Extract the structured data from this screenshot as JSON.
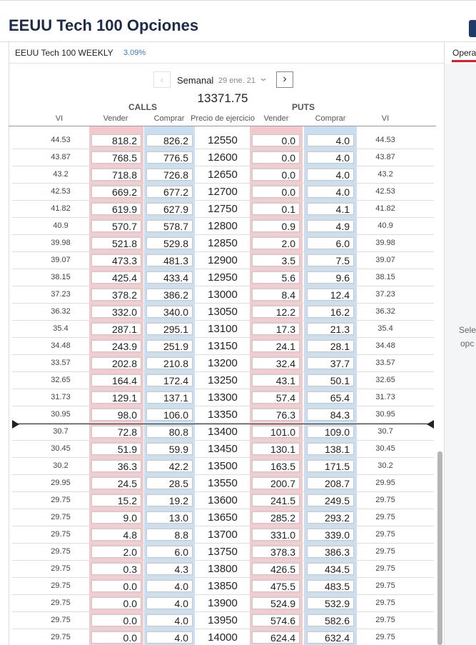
{
  "header": {
    "title": "EEUU Tech 100 Opciones"
  },
  "tabs": {
    "instrument": "EEUU Tech 100 WEEKLY",
    "change": "3.09%",
    "right": "Opera"
  },
  "nav": {
    "period": "Semanal",
    "date": "29 ene. 21"
  },
  "price": "13371.75",
  "columns": {
    "calls": "CALLS",
    "puts": "PUTS"
  },
  "headers": [
    "VI",
    "Vender",
    "Comprar",
    "Precio de ejercicio",
    "Vender",
    "Comprar",
    "VI"
  ],
  "side_text": [
    "Sele",
    "opc"
  ],
  "table": {
    "rows": [
      [
        "44.53",
        "818.2",
        "826.2",
        "12550",
        "0.0",
        "4.0",
        "44.53"
      ],
      [
        "43.87",
        "768.5",
        "776.5",
        "12600",
        "0.0",
        "4.0",
        "43.87"
      ],
      [
        "43.2",
        "718.8",
        "726.8",
        "12650",
        "0.0",
        "4.0",
        "43.2"
      ],
      [
        "42.53",
        "669.2",
        "677.2",
        "12700",
        "0.0",
        "4.0",
        "42.53"
      ],
      [
        "41.82",
        "619.9",
        "627.9",
        "12750",
        "0.1",
        "4.1",
        "41.82"
      ],
      [
        "40.9",
        "570.7",
        "578.7",
        "12800",
        "0.9",
        "4.9",
        "40.9"
      ],
      [
        "39.98",
        "521.8",
        "529.8",
        "12850",
        "2.0",
        "6.0",
        "39.98"
      ],
      [
        "39.07",
        "473.3",
        "481.3",
        "12900",
        "3.5",
        "7.5",
        "39.07"
      ],
      [
        "38.15",
        "425.4",
        "433.4",
        "12950",
        "5.6",
        "9.6",
        "38.15"
      ],
      [
        "37.23",
        "378.2",
        "386.2",
        "13000",
        "8.4",
        "12.4",
        "37.23"
      ],
      [
        "36.32",
        "332.0",
        "340.0",
        "13050",
        "12.2",
        "16.2",
        "36.32"
      ],
      [
        "35.4",
        "287.1",
        "295.1",
        "13100",
        "17.3",
        "21.3",
        "35.4"
      ],
      [
        "34.48",
        "243.9",
        "251.9",
        "13150",
        "24.1",
        "28.1",
        "34.48"
      ],
      [
        "33.57",
        "202.8",
        "210.8",
        "13200",
        "32.4",
        "37.7",
        "33.57"
      ],
      [
        "32.65",
        "164.4",
        "172.4",
        "13250",
        "43.1",
        "50.1",
        "32.65"
      ],
      [
        "31.73",
        "129.1",
        "137.1",
        "13300",
        "57.4",
        "65.4",
        "31.73"
      ],
      [
        "30.95",
        "98.0",
        "106.0",
        "13350",
        "76.3",
        "84.3",
        "30.95"
      ],
      [
        "30.7",
        "72.8",
        "80.8",
        "13400",
        "101.0",
        "109.0",
        "30.7"
      ],
      [
        "30.45",
        "51.9",
        "59.9",
        "13450",
        "130.1",
        "138.1",
        "30.45"
      ],
      [
        "30.2",
        "36.3",
        "42.2",
        "13500",
        "163.5",
        "171.5",
        "30.2"
      ],
      [
        "29.95",
        "24.5",
        "28.5",
        "13550",
        "200.7",
        "208.7",
        "29.95"
      ],
      [
        "29.75",
        "15.2",
        "19.2",
        "13600",
        "241.5",
        "249.5",
        "29.75"
      ],
      [
        "29.75",
        "9.0",
        "13.0",
        "13650",
        "285.2",
        "293.2",
        "29.75"
      ],
      [
        "29.75",
        "4.8",
        "8.8",
        "13700",
        "331.0",
        "339.0",
        "29.75"
      ],
      [
        "29.75",
        "2.0",
        "6.0",
        "13750",
        "378.3",
        "386.3",
        "29.75"
      ],
      [
        "29.75",
        "0.3",
        "4.3",
        "13800",
        "426.5",
        "434.5",
        "29.75"
      ],
      [
        "29.75",
        "0.0",
        "4.0",
        "13850",
        "475.5",
        "483.5",
        "29.75"
      ],
      [
        "29.75",
        "0.0",
        "4.0",
        "13900",
        "524.9",
        "532.9",
        "29.75"
      ],
      [
        "29.75",
        "0.0",
        "4.0",
        "13950",
        "574.6",
        "582.6",
        "29.75"
      ],
      [
        "29.75",
        "0.0",
        "4.0",
        "14000",
        "624.4",
        "632.4",
        "29.75"
      ]
    ]
  }
}
